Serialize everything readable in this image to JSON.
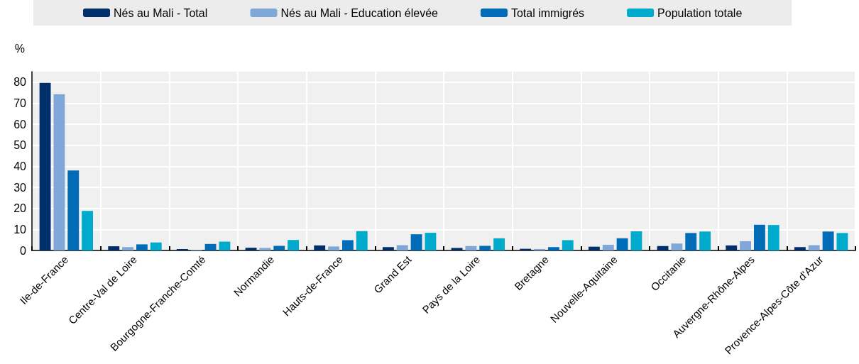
{
  "chart_data": {
    "type": "bar",
    "ylabel": "%",
    "categories": [
      "Ile-de-France",
      "Centre-Val de Loire",
      "Bourgogne-Franche-Comté",
      "Normandie",
      "Hauts-de-France",
      "Grand Est",
      "Pays de la Loire",
      "Bretagne",
      "Nouvelle-Aquitaine",
      "Occitanie",
      "Auvergne-Rhône-Alpes",
      "Provence-Alpes-Côte d'Azur"
    ],
    "series": [
      {
        "name": "Nés au Mali - Total",
        "color": "#002f6c",
        "values": [
          79.7,
          2,
          0.7,
          1.3,
          2.4,
          1.6,
          1.2,
          0.8,
          1.8,
          2.1,
          2.4,
          1.6
        ]
      },
      {
        "name": "Nés au Mali - Education élevée",
        "color": "#7fa8d9",
        "values": [
          74.3,
          1.6,
          0.3,
          1.2,
          1.9,
          2.5,
          2.1,
          0.7,
          2.7,
          3.3,
          4.4,
          2.5
        ]
      },
      {
        "name": "Total immigrés",
        "color": "#006bb6",
        "values": [
          38,
          2.9,
          3.1,
          2.2,
          4.9,
          7.7,
          2.2,
          1.6,
          5.8,
          8.3,
          12.2,
          9
        ]
      },
      {
        "name": "Population totale",
        "color": "#00aacc",
        "values": [
          18.8,
          3.8,
          4.2,
          5,
          9.2,
          8.4,
          5.8,
          4.9,
          9.1,
          9,
          12.1,
          8.3
        ]
      }
    ],
    "ylim": [
      0,
      85
    ],
    "yticks": [
      0,
      10,
      20,
      30,
      40,
      50,
      60,
      70,
      80
    ],
    "grid": true,
    "legend": "top"
  }
}
